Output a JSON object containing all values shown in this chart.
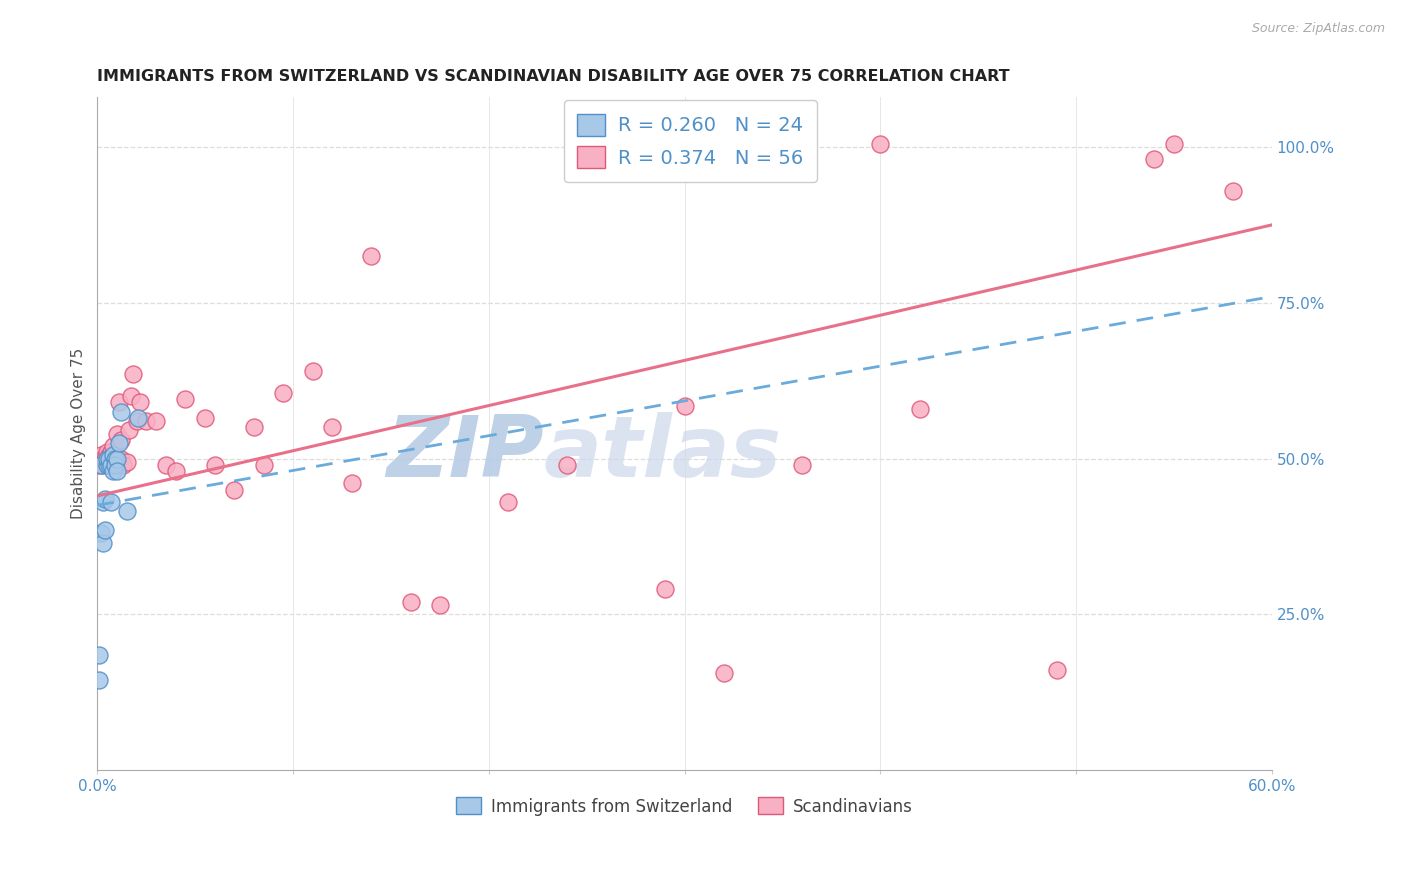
{
  "title": "IMMIGRANTS FROM SWITZERLAND VS SCANDINAVIAN DISABILITY AGE OVER 75 CORRELATION CHART",
  "source": "Source: ZipAtlas.com",
  "ylabel": "Disability Age Over 75",
  "xmin": 0.0,
  "xmax": 0.6,
  "ymin": 0.0,
  "ymax": 1.08,
  "ytick_vals": [
    0.25,
    0.5,
    0.75,
    1.0
  ],
  "ytick_labels": [
    "25.0%",
    "50.0%",
    "75.0%",
    "100.0%"
  ],
  "xtick_vals": [
    0.0,
    0.1,
    0.2,
    0.3,
    0.4,
    0.5,
    0.6
  ],
  "xtick_labels": [
    "0.0%",
    "",
    "",
    "",
    "",
    "",
    "60.0%"
  ],
  "legend_r1": "0.260",
  "legend_n1": "24",
  "legend_r2": "0.374",
  "legend_n2": "56",
  "legend_label1": "Immigrants from Switzerland",
  "legend_label2": "Scandinavians",
  "color_swiss_face": "#a8c8e8",
  "color_swiss_edge": "#5090c8",
  "color_scand_face": "#f8b0c4",
  "color_scand_edge": "#e05878",
  "color_swiss_line": "#6aabdc",
  "color_scand_line": "#e8708a",
  "watermark_color": "#ccddf0",
  "grid_color": "#dddddd",
  "title_color": "#222222",
  "source_color": "#aaaaaa",
  "tick_color": "#5090c8",
  "swiss_x": [
    0.001,
    0.001,
    0.002,
    0.002,
    0.003,
    0.003,
    0.004,
    0.004,
    0.005,
    0.005,
    0.006,
    0.006,
    0.007,
    0.007,
    0.008,
    0.008,
    0.009,
    0.009,
    0.01,
    0.01,
    0.011,
    0.012,
    0.015,
    0.021
  ],
  "swiss_y": [
    0.185,
    0.145,
    0.49,
    0.38,
    0.43,
    0.365,
    0.435,
    0.385,
    0.49,
    0.5,
    0.49,
    0.5,
    0.49,
    0.43,
    0.48,
    0.505,
    0.5,
    0.49,
    0.5,
    0.48,
    0.525,
    0.575,
    0.415,
    0.565
  ],
  "scand_x": [
    0.001,
    0.002,
    0.003,
    0.003,
    0.004,
    0.004,
    0.005,
    0.005,
    0.006,
    0.006,
    0.007,
    0.007,
    0.008,
    0.008,
    0.009,
    0.01,
    0.01,
    0.011,
    0.012,
    0.012,
    0.013,
    0.015,
    0.016,
    0.017,
    0.018,
    0.02,
    0.022,
    0.025,
    0.03,
    0.035,
    0.04,
    0.045,
    0.055,
    0.06,
    0.07,
    0.08,
    0.085,
    0.095,
    0.11,
    0.12,
    0.13,
    0.14,
    0.16,
    0.175,
    0.21,
    0.24,
    0.29,
    0.3,
    0.32,
    0.36,
    0.4,
    0.42,
    0.49,
    0.54,
    0.55,
    0.58
  ],
  "scand_y": [
    0.49,
    0.505,
    0.5,
    0.49,
    0.495,
    0.5,
    0.49,
    0.51,
    0.49,
    0.505,
    0.51,
    0.495,
    0.52,
    0.49,
    0.5,
    0.54,
    0.49,
    0.59,
    0.53,
    0.5,
    0.49,
    0.495,
    0.545,
    0.6,
    0.635,
    0.56,
    0.59,
    0.56,
    0.56,
    0.49,
    0.48,
    0.595,
    0.565,
    0.49,
    0.45,
    0.55,
    0.49,
    0.605,
    0.64,
    0.55,
    0.46,
    0.825,
    0.27,
    0.265,
    0.43,
    0.49,
    0.29,
    0.585,
    0.155,
    0.49,
    1.005,
    0.58,
    0.16,
    0.98,
    1.005,
    0.93
  ]
}
